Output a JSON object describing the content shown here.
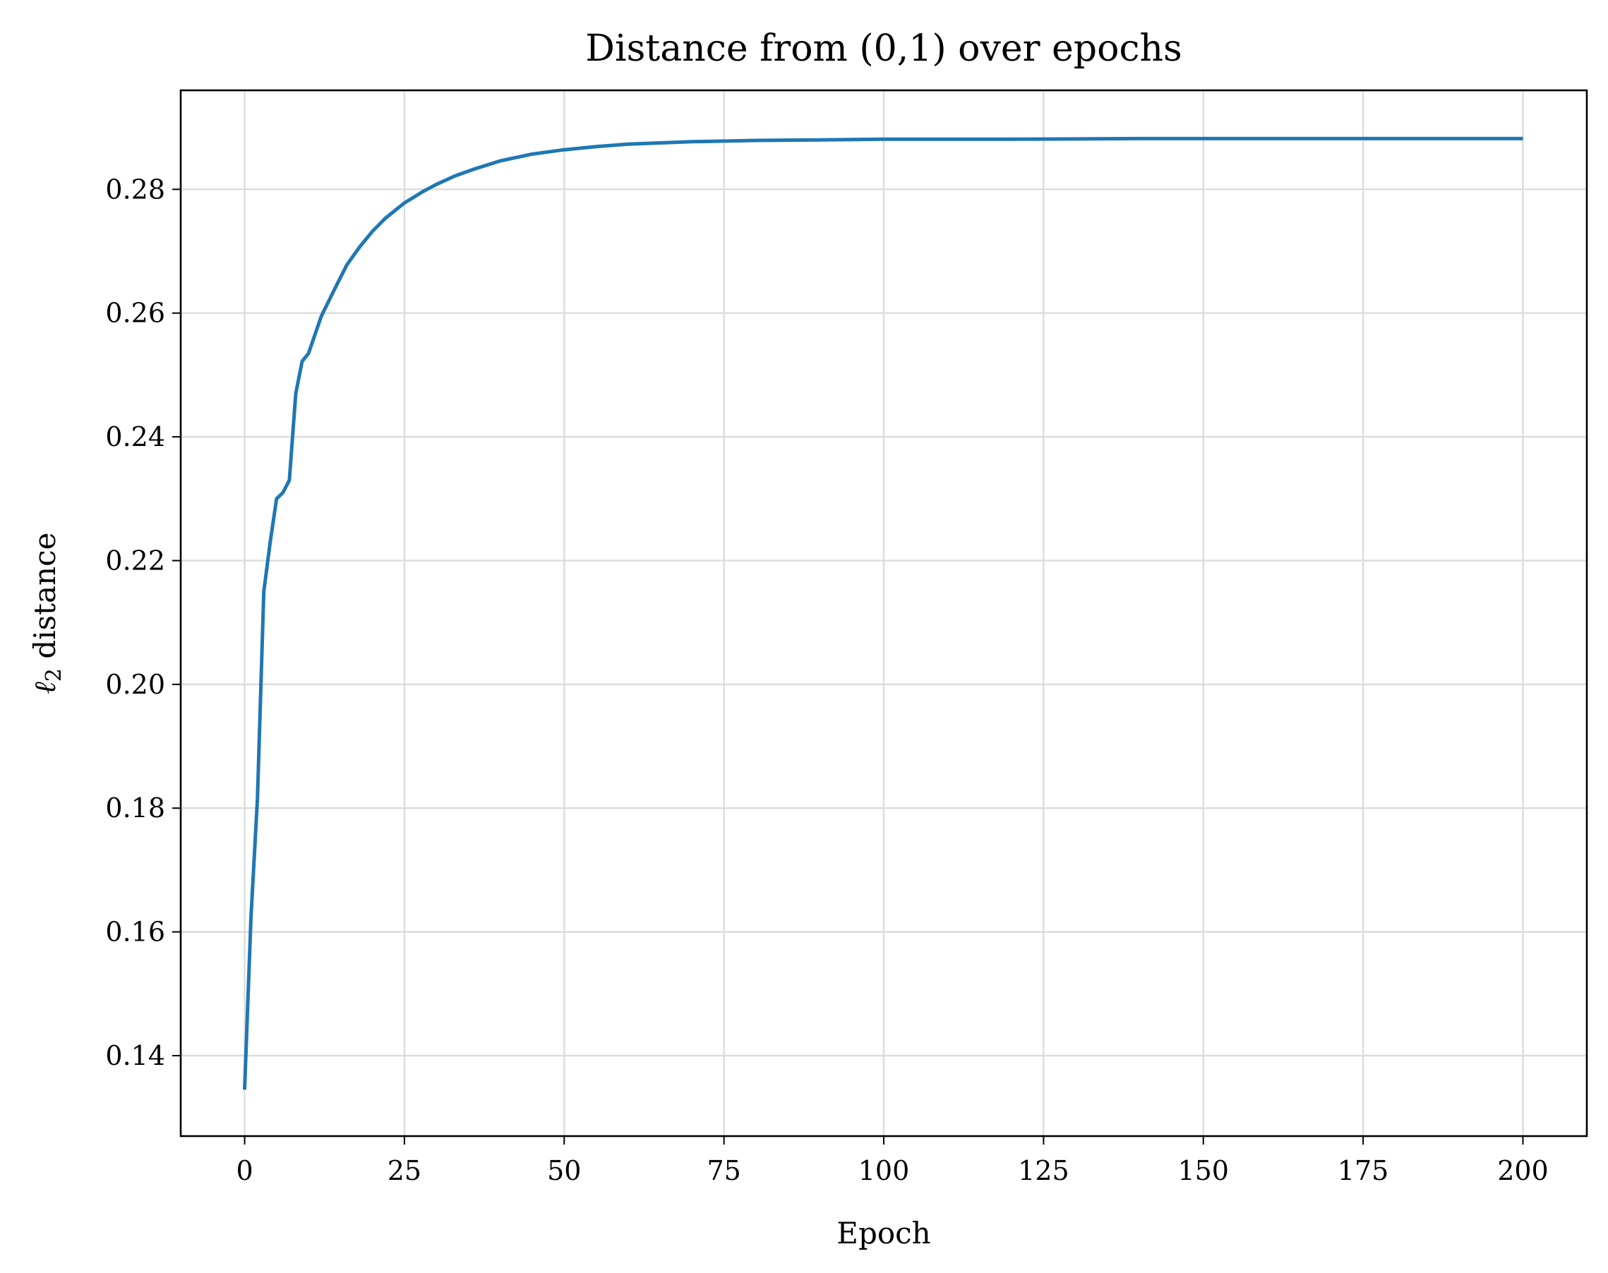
{
  "chart_data": {
    "type": "line",
    "title": "Distance from (0,1) over epochs",
    "xlabel": "Epoch",
    "ylabel_symbol": "ℓ",
    "ylabel_subscript": "2",
    "ylabel_rest": " distance",
    "xlim": [
      -10,
      210
    ],
    "ylim": [
      0.127,
      0.296
    ],
    "xticks": [
      0,
      25,
      50,
      75,
      100,
      125,
      150,
      175,
      200
    ],
    "xtick_labels": [
      "0",
      "25",
      "50",
      "75",
      "100",
      "125",
      "150",
      "175",
      "200"
    ],
    "yticks": [
      0.14,
      0.16,
      0.18,
      0.2,
      0.22,
      0.24,
      0.26,
      0.28
    ],
    "ytick_labels": [
      "0.14",
      "0.16",
      "0.18",
      "0.20",
      "0.22",
      "0.24",
      "0.26",
      "0.28"
    ],
    "grid": true,
    "color": "#1f77b4",
    "series": [
      {
        "x": [
          0,
          1,
          2,
          3,
          4,
          5,
          6,
          7,
          8,
          9,
          10,
          12,
          14,
          16,
          18,
          20,
          22,
          25,
          28,
          30,
          33,
          36,
          40,
          45,
          50,
          55,
          60,
          70,
          80,
          90,
          100,
          120,
          140,
          160,
          180,
          200
        ],
        "values": [
          0.1345,
          0.1625,
          0.1815,
          0.215,
          0.223,
          0.23,
          0.231,
          0.233,
          0.247,
          0.2522,
          0.2535,
          0.2595,
          0.2637,
          0.2678,
          0.2707,
          0.2732,
          0.2753,
          0.2778,
          0.2797,
          0.2808,
          0.2822,
          0.2833,
          0.2846,
          0.2857,
          0.2864,
          0.2869,
          0.2873,
          0.2877,
          0.2879,
          0.288,
          0.2881,
          0.2881,
          0.2882,
          0.2882,
          0.2882,
          0.2882
        ]
      }
    ]
  }
}
